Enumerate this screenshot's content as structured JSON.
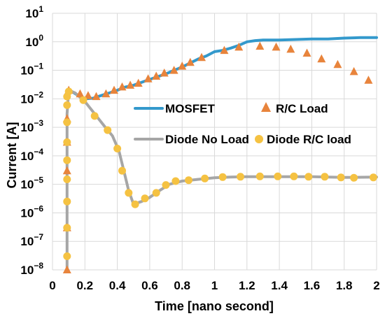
{
  "chart_data": {
    "type": "line",
    "xlabel": "Time [nano second]",
    "ylabel": "Current [A]",
    "xlim": [
      0,
      2
    ],
    "ylim_log10": [
      -8,
      1
    ],
    "y_scale": "log",
    "grid": true,
    "x_ticks": [
      "0",
      "0.2",
      "0.4",
      "0.6",
      "0.8",
      "1",
      "1.2",
      "1.4",
      "1.6",
      "1.8",
      "2"
    ],
    "y_ticks": [
      {
        "base": "10",
        "exp": "1"
      },
      {
        "base": "10",
        "exp": "0"
      },
      {
        "base": "10",
        "exp": "−1"
      },
      {
        "base": "10",
        "exp": "−2"
      },
      {
        "base": "10",
        "exp": "−3"
      },
      {
        "base": "10",
        "exp": "−4"
      },
      {
        "base": "10",
        "exp": "−5"
      },
      {
        "base": "10",
        "exp": "−6"
      },
      {
        "base": "10",
        "exp": "−7"
      },
      {
        "base": "10",
        "exp": "−8"
      }
    ],
    "legend": {
      "placement": "center-right"
    },
    "series": [
      {
        "name": "MOSFET",
        "style": "line",
        "color": "#3399cc",
        "x": [
          0.09,
          0.12,
          0.15,
          0.2,
          0.25,
          0.3,
          0.35,
          0.4,
          0.45,
          0.5,
          0.55,
          0.6,
          0.65,
          0.7,
          0.75,
          0.8,
          0.85,
          0.9,
          0.95,
          1.0,
          1.05,
          1.1,
          1.15,
          1.2,
          1.25,
          1.3,
          1.35,
          1.4,
          1.5,
          1.6,
          1.7,
          1.8,
          1.9,
          2.0
        ],
        "y": [
          0.02,
          0.018,
          0.014,
          0.01,
          0.0105,
          0.013,
          0.016,
          0.02,
          0.026,
          0.03,
          0.038,
          0.048,
          0.06,
          0.075,
          0.1,
          0.13,
          0.18,
          0.25,
          0.32,
          0.45,
          0.5,
          0.6,
          0.75,
          1.0,
          1.1,
          1.15,
          1.15,
          1.15,
          1.2,
          1.25,
          1.25,
          1.35,
          1.4,
          1.4
        ]
      },
      {
        "name": "R/C Load",
        "style": "marker-triangle",
        "color": "#e8843c",
        "x": [
          0.09,
          0.09,
          0.09,
          0.09,
          0.09,
          0.1,
          0.17,
          0.22,
          0.27,
          0.33,
          0.38,
          0.43,
          0.48,
          0.53,
          0.59,
          0.64,
          0.69,
          0.75,
          0.8,
          0.85,
          0.92,
          1.06,
          1.15,
          1.28,
          1.38,
          1.47,
          1.57,
          1.66,
          1.76,
          1.86,
          1.95
        ],
        "y": [
          1e-08,
          3e-07,
          3e-05,
          0.0003,
          0.002,
          0.02,
          0.015,
          0.013,
          0.012,
          0.015,
          0.02,
          0.026,
          0.03,
          0.035,
          0.05,
          0.062,
          0.08,
          0.1,
          0.14,
          0.19,
          0.28,
          0.5,
          0.65,
          0.7,
          0.65,
          0.55,
          0.4,
          0.25,
          0.16,
          0.09,
          0.045
        ]
      },
      {
        "name": "Diode No Load",
        "style": "line",
        "color": "#a6a6a6",
        "x": [
          0.09,
          0.09,
          0.09,
          0.09,
          0.1,
          0.14,
          0.2,
          0.26,
          0.32,
          0.37,
          0.41,
          0.44,
          0.47,
          0.5,
          0.55,
          0.6,
          0.66,
          0.72,
          0.8,
          0.9,
          1.0,
          1.1,
          1.2,
          1.4,
          1.6,
          1.8,
          2.0
        ],
        "y": [
          1e-08,
          1e-06,
          0.0001,
          0.003,
          0.02,
          0.016,
          0.008,
          0.003,
          0.0011,
          0.0005,
          0.00015,
          3e-05,
          6e-06,
          2e-06,
          2.5e-06,
          3.5e-06,
          6e-06,
          1e-05,
          1.3e-05,
          1.5e-05,
          1.7e-05,
          1.8e-05,
          1.85e-05,
          1.85e-05,
          1.85e-05,
          1.75e-05,
          1.8e-05
        ]
      },
      {
        "name": "Diode R/C load",
        "style": "marker-circle",
        "color": "#f5c242",
        "x": [
          0.09,
          0.09,
          0.09,
          0.09,
          0.09,
          0.09,
          0.09,
          0.09,
          0.09,
          0.1,
          0.19,
          0.26,
          0.34,
          0.4,
          0.43,
          0.47,
          0.51,
          0.57,
          0.64,
          0.7,
          0.76,
          0.84,
          0.94,
          1.05,
          1.16,
          1.28,
          1.39,
          1.49,
          1.58,
          1.68,
          1.78,
          1.86,
          1.98
        ],
        "y": [
          3e-08,
          3e-07,
          2.5e-06,
          1.5e-05,
          7e-05,
          0.0003,
          0.0015,
          0.006,
          0.012,
          0.018,
          0.009,
          0.0025,
          0.0008,
          0.00018,
          3e-05,
          5e-06,
          2e-06,
          3.2e-06,
          5e-06,
          9.5e-06,
          1.3e-05,
          1.4e-05,
          1.6e-05,
          1.8e-05,
          1.85e-05,
          1.9e-05,
          1.9e-05,
          1.9e-05,
          1.85e-05,
          1.85e-05,
          1.75e-05,
          1.7e-05,
          1.75e-05
        ]
      }
    ]
  }
}
